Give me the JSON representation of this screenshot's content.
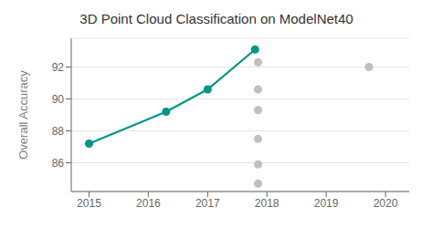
{
  "chart_data": {
    "type": "line",
    "title": "3D Point Cloud Classification on ModelNet40",
    "ylabel": "Overall Accuracy",
    "xlim": [
      2014.7,
      2020.4
    ],
    "xticks": [
      2015,
      2016,
      2017,
      2018,
      2019,
      2020
    ],
    "ylim": [
      84.2,
      93.8
    ],
    "yticks": [
      86,
      88,
      90,
      92
    ],
    "grid": "y",
    "series": [
      {
        "type": "line",
        "color": "#009688",
        "marker": "circle",
        "x": [
          2015.0,
          2016.3,
          2017.0,
          2017.8
        ],
        "values": [
          87.2,
          89.2,
          90.6,
          93.1
        ]
      },
      {
        "type": "scatter",
        "color": "#c0c0c0",
        "x": [
          2017.85,
          2017.85,
          2017.85,
          2017.85,
          2017.85,
          2017.85,
          2019.72
        ],
        "values": [
          92.3,
          90.6,
          89.3,
          87.5,
          85.9,
          84.7,
          92.0
        ]
      }
    ]
  }
}
